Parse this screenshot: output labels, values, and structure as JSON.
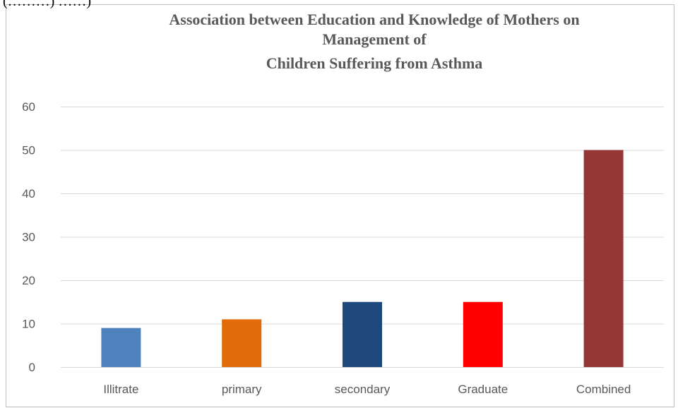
{
  "top_fragment": "(………) ……)",
  "chart_data": {
    "type": "bar",
    "title_lines": [
      "Association between Education and Knowledge of Mothers on",
      "Management of",
      "Children Suffering from Asthma"
    ],
    "categories": [
      "Illitrate",
      "primary",
      "secondary",
      "Graduate",
      "Combined"
    ],
    "values": [
      9,
      11,
      15,
      15,
      50
    ],
    "colors": [
      "#4f81bd",
      "#e36c0a",
      "#1f497d",
      "#ff0000",
      "#943634"
    ],
    "y_ticks": [
      "0",
      "10",
      "20",
      "30",
      "40",
      "50",
      "60"
    ],
    "ylim": [
      0,
      60
    ],
    "grid": true,
    "legend": "none"
  }
}
